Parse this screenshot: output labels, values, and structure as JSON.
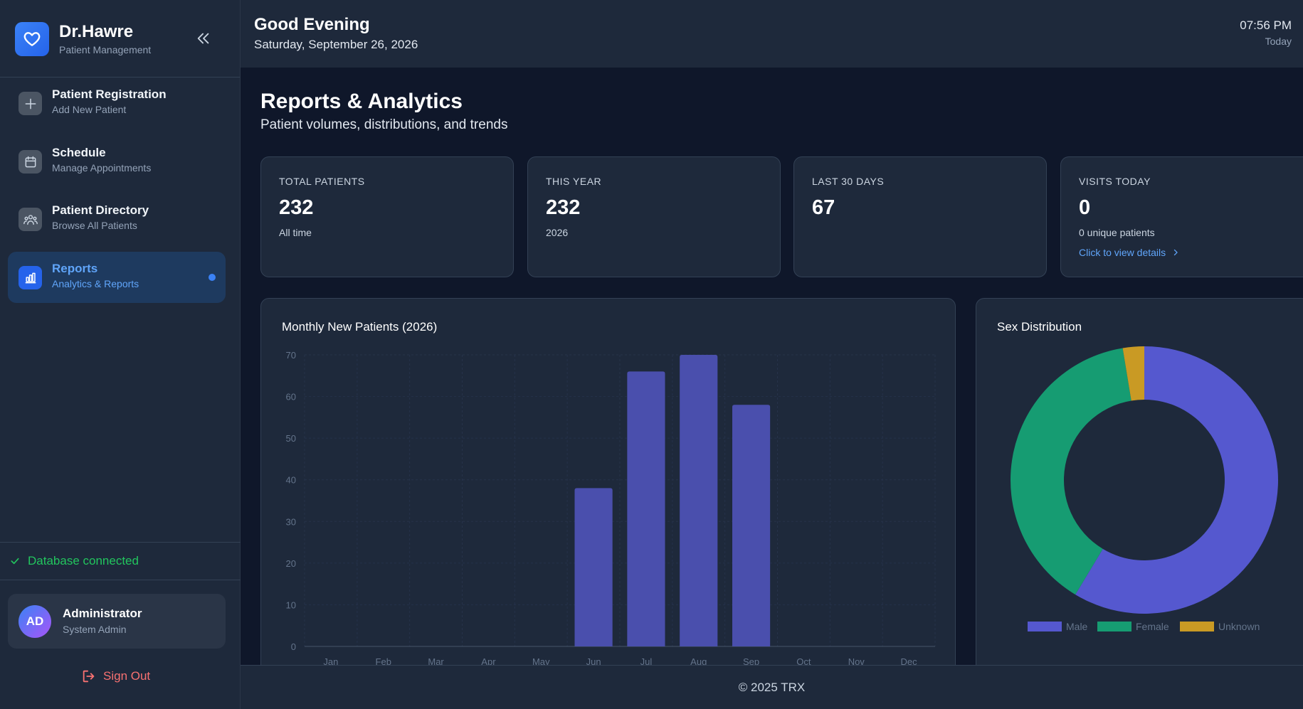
{
  "brand": {
    "title": "Dr.Hawre",
    "subtitle": "Patient Management"
  },
  "nav": [
    {
      "label": "Patient Registration",
      "desc": "Add New Patient",
      "icon": "plus-icon",
      "active": false
    },
    {
      "label": "Schedule",
      "desc": "Manage Appointments",
      "icon": "calendar-icon",
      "active": false
    },
    {
      "label": "Patient Directory",
      "desc": "Browse All Patients",
      "icon": "users-icon",
      "active": false
    },
    {
      "label": "Reports",
      "desc": "Analytics & Reports",
      "icon": "bar-chart-icon",
      "active": true
    }
  ],
  "status": {
    "db": "Database connected"
  },
  "user": {
    "initials": "AD",
    "name": "Administrator",
    "role": "System Admin"
  },
  "signout": "Sign Out",
  "header": {
    "greeting": "Good Evening",
    "date": "Saturday, September 26, 2026",
    "time": "07:56 PM",
    "time_sub": "Today"
  },
  "page": {
    "title": "Reports & Analytics",
    "subtitle": "Patient volumes, distributions, and trends"
  },
  "stats": [
    {
      "label": "TOTAL PATIENTS",
      "value": "232",
      "sub": "All time"
    },
    {
      "label": "THIS YEAR",
      "value": "232",
      "sub": "2026"
    },
    {
      "label": "LAST 30 DAYS",
      "value": "67",
      "sub": ""
    },
    {
      "label": "VISITS TODAY",
      "value": "0",
      "sub": "0 unique patients",
      "link": "Click to view details"
    }
  ],
  "footer": "© 2025 TRX",
  "colors": {
    "bar": "#4a4fad",
    "male": "#5558cf",
    "female": "#169c72",
    "unknown": "#c99a24",
    "accent": "#3b82f6"
  },
  "chart_data": [
    {
      "type": "bar",
      "title": "Monthly New Patients (2026)",
      "categories": [
        "Jan",
        "Feb",
        "Mar",
        "Apr",
        "May",
        "Jun",
        "Jul",
        "Aug",
        "Sep",
        "Oct",
        "Nov",
        "Dec"
      ],
      "values": [
        0,
        0,
        0,
        0,
        0,
        38,
        66,
        70,
        58,
        0,
        0,
        0
      ],
      "ylim": [
        0,
        70
      ],
      "yticks": [
        0,
        10,
        20,
        30,
        40,
        50,
        60,
        70
      ],
      "grid": true
    },
    {
      "type": "pie",
      "title": "Sex Distribution",
      "categories": [
        "Male",
        "Female",
        "Unknown"
      ],
      "values": [
        136,
        90,
        6
      ],
      "legend": "bottom"
    }
  ]
}
